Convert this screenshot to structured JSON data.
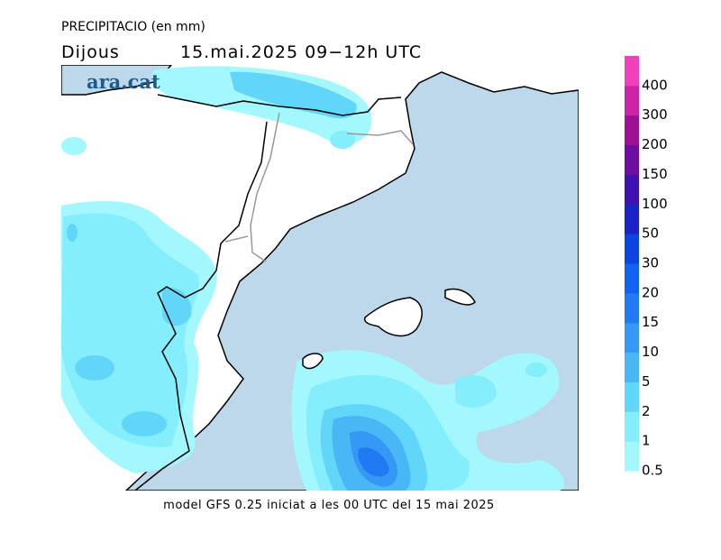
{
  "header": {
    "title": "PRECIPITACIO (en mm)",
    "day": "Dijous",
    "date": "15.mai.2025 09−12h UTC",
    "brand": "ara.cat"
  },
  "legend": {
    "levels": [
      0.5,
      1,
      2,
      5,
      10,
      15,
      20,
      30,
      50,
      100,
      150,
      200,
      300,
      400
    ],
    "colors": [
      "#a2f8fd",
      "#84eefc",
      "#62d6f9",
      "#49b6f6",
      "#3598f4",
      "#227af2",
      "#1262ef",
      "#0b44e0",
      "#1a24c4",
      "#3e12b0",
      "#6c0ea0",
      "#9e1094",
      "#cc22a6",
      "#f040bc"
    ]
  },
  "footer": "model GFS 0.25 iniciat a les 00 UTC del 15 mai 2025"
}
